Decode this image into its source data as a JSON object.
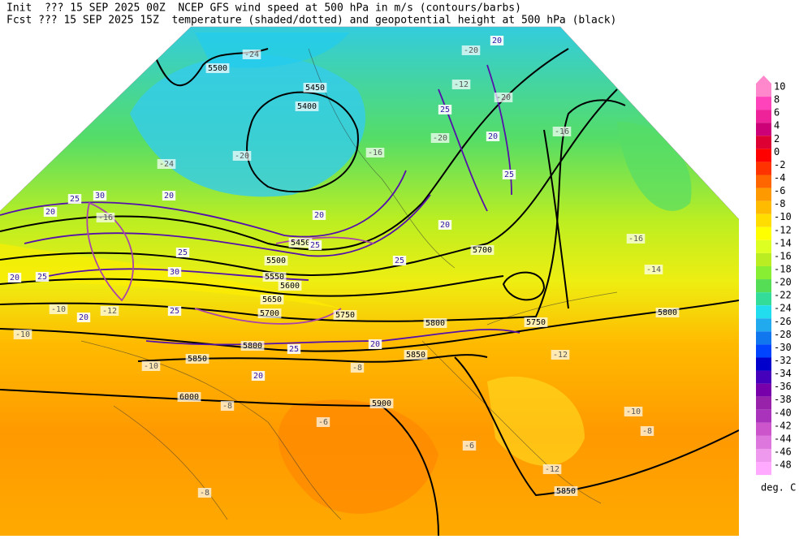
{
  "header": {
    "line1": "Init  ??? 15 SEP 2025 00Z  NCEP GFS wind speed at 500 hPa in m/s (contours/barbs)",
    "line2": "Fcst ??? 15 SEP 2025 15Z  temperature (shaded/dotted) and geopotential height at 500 hPa (black)"
  },
  "colorbar": {
    "labels": [
      10,
      8,
      6,
      4,
      2,
      0,
      -2,
      -4,
      -6,
      -8,
      -10,
      -12,
      -14,
      -16,
      -18,
      -20,
      -22,
      -24,
      -26,
      -28,
      -30,
      -32,
      -34,
      -36,
      -38,
      -40,
      -42,
      -44,
      -46,
      -48
    ],
    "colors": [
      "#ff88cc",
      "#ff44bb",
      "#ee2299",
      "#cc0077",
      "#dd0033",
      "#ff0000",
      "#ff3300",
      "#ff6600",
      "#ff9900",
      "#ffbb00",
      "#ffdd00",
      "#ffff00",
      "#ddff22",
      "#bbee22",
      "#88ee33",
      "#55dd55",
      "#33dd99",
      "#22ddee",
      "#22aaee",
      "#1177ee",
      "#0044ff",
      "#0000cc",
      "#4400bb",
      "#7700aa",
      "#9922aa",
      "#aa33bb",
      "#cc55cc",
      "#dd77dd",
      "#ee99ee",
      "#ffaaff"
    ],
    "unit": "deg. C"
  },
  "map_labels": [
    "5500",
    "5450",
    "5400",
    "-24",
    "-20",
    "-24",
    "-16",
    "20",
    "25",
    "30",
    "20",
    "-16",
    "5450",
    "25",
    "5500",
    "5550",
    "5600",
    "5650",
    "5700",
    "5750",
    "5800",
    "5850",
    "6000",
    "5900",
    "5850",
    "5800",
    "5750",
    "5700",
    "5800",
    "5850",
    "-16",
    "-16",
    "-14",
    "-12",
    "-10",
    "-8",
    "-8",
    "-6",
    "-6",
    "-8",
    "-8",
    "-10",
    "-10",
    "-12",
    "-10",
    "25",
    "20",
    "20",
    "25",
    "20",
    "20",
    "25",
    "20",
    "25",
    "30",
    "20",
    "25",
    "-12",
    "-20",
    "20",
    "25",
    "25",
    "-20",
    "-12",
    "-20",
    "20"
  ]
}
